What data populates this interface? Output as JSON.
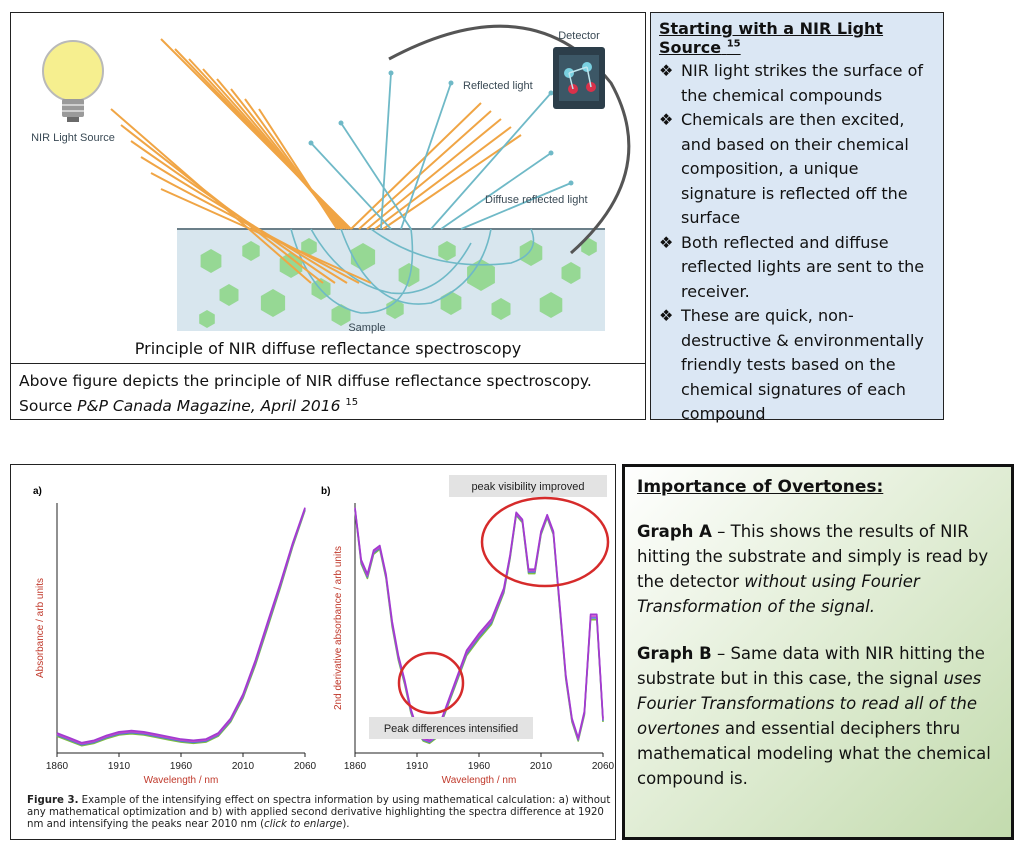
{
  "diagram": {
    "labels": {
      "source": "NIR Light Source",
      "detector": "Detector",
      "reflected": "Reflected light",
      "diffuse": "Diffuse reflected light",
      "sample": "Sample"
    },
    "caption": "Principle of NIR diffuse reflectance spectroscopy",
    "note": {
      "line1": "Above figure depicts the principle of NIR diffuse reflectance spectroscopy.",
      "line2_prefix": "Source ",
      "line2_italic": "P&P Canada Magazine, April 2016",
      "line2_sup": "15"
    },
    "colors": {
      "light": "#f0a545",
      "reflected": "#6fb9c7",
      "hexagon": "#8fd68a",
      "sample_bg": "#d8e6ee"
    }
  },
  "nir_panel": {
    "title": "Starting with a NIR Light Source",
    "title_sup": "15",
    "bullet_mark": "❖",
    "bullets": [
      [
        "NIR light strikes the surface of",
        "the chemical compounds"
      ],
      [
        "Chemicals are then excited,",
        "and based on their chemical",
        "composition, a unique",
        "signature is reflected off the",
        "surface"
      ],
      [
        "Both reflected and diffuse",
        "reflected lights are sent to the",
        "receiver."
      ],
      [
        "These are quick, non-",
        "destructive & environmentally",
        "friendly tests based on the",
        "chemical signatures of each",
        "compound"
      ]
    ]
  },
  "graphs": {
    "panel_a_label": "a)",
    "panel_b_label": "b)",
    "callout_top": "peak visibility improved",
    "callout_bottom": "Peak differences intensified",
    "caption": {
      "bold": "Figure 3.",
      "text": " Example of the intensifying effect on spectra information by using mathematical calculation: a) without any mathematical optimization and b) with applied second derivative highlighting the spectra difference at 1920 nm and intensifying the peaks near 2010 nm (",
      "italic": "click to enlarge",
      "end": ")."
    }
  },
  "chart_data": [
    {
      "type": "line",
      "title": "",
      "xlabel": "Wavelength / nm",
      "ylabel": "Absorbance / arb units",
      "xlim": [
        1860,
        2060
      ],
      "xticks": [
        "1860",
        "1910",
        "1960",
        "2010",
        "2060"
      ],
      "ylim": [
        0,
        1
      ],
      "series": [
        {
          "x": [
            1860,
            1870,
            1880,
            1890,
            1900,
            1910,
            1920,
            1930,
            1940,
            1950,
            1960,
            1970,
            1980,
            1990,
            2000,
            2010,
            2020,
            2030,
            2040,
            2050,
            2060
          ],
          "y": [
            0.06,
            0.04,
            0.02,
            0.03,
            0.05,
            0.065,
            0.07,
            0.065,
            0.055,
            0.045,
            0.035,
            0.03,
            0.035,
            0.06,
            0.12,
            0.22,
            0.36,
            0.52,
            0.68,
            0.85,
            1.0
          ]
        }
      ]
    },
    {
      "type": "line",
      "title": "",
      "xlabel": "Wavelength / nm",
      "ylabel": "2nd derivative absorbance / arb units",
      "xlim": [
        1860,
        2060
      ],
      "xticks": [
        "1860",
        "1910",
        "1960",
        "2010",
        "2060"
      ],
      "ylim": [
        0,
        1
      ],
      "series": [
        {
          "x": [
            1860,
            1865,
            1870,
            1875,
            1880,
            1885,
            1890,
            1895,
            1900,
            1905,
            1910,
            1915,
            1920,
            1925,
            1930,
            1940,
            1950,
            1960,
            1970,
            1980,
            1985,
            1990,
            1995,
            2000,
            2005,
            2010,
            2015,
            2020,
            2025,
            2030,
            2035,
            2040,
            2045,
            2050,
            2055,
            2060
          ],
          "y": [
            1.0,
            0.78,
            0.72,
            0.82,
            0.84,
            0.72,
            0.52,
            0.38,
            0.28,
            0.16,
            0.08,
            0.04,
            0.03,
            0.05,
            0.12,
            0.26,
            0.4,
            0.47,
            0.53,
            0.66,
            0.8,
            0.98,
            0.95,
            0.74,
            0.74,
            0.9,
            0.97,
            0.9,
            0.6,
            0.3,
            0.12,
            0.04,
            0.15,
            0.55,
            0.55,
            0.12
          ]
        }
      ]
    }
  ],
  "overtones": {
    "title": "Importance of Overtones:",
    "graph_a_bold": "Graph A",
    "graph_a_text": " – This shows the results of NIR hitting the substrate and simply is read by the detector ",
    "graph_a_italic": "without using Fourier Transformation of the signal.",
    "graph_b_bold": "Graph B",
    "graph_b_text": " – Same data with NIR hitting the substrate but in this case, the signal ",
    "graph_b_italic": "uses Fourier Transformations to read all of the overtones",
    "graph_b_end": " and essential deciphers thru mathematical modeling what the chemical compound is."
  }
}
